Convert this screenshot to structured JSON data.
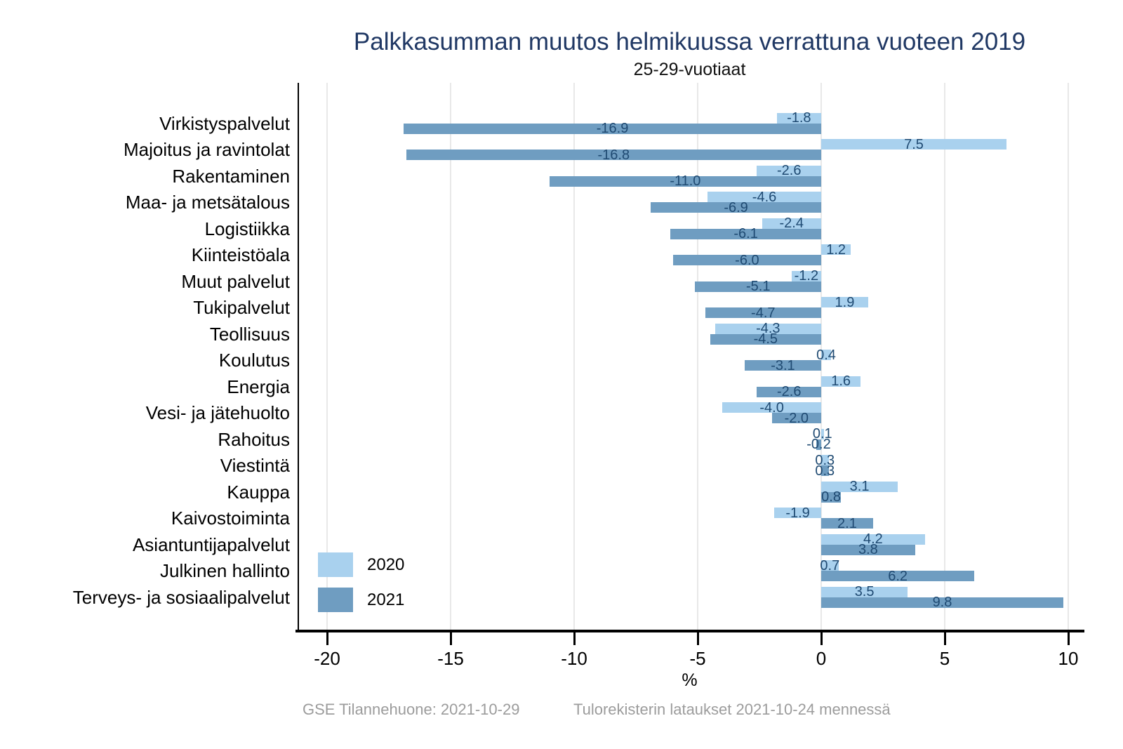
{
  "title": "Palkkasumman muutos helmikuussa verrattuna vuoteen 2019",
  "subtitle": "25-29-vuotiaat",
  "footer": {
    "left": "GSE Tilannehuone: 2021-10-29",
    "right": "Tulorekisterin lataukset 2021-10-24 mennessä"
  },
  "colors": {
    "series_2020": "#A9D1EE",
    "series_2021": "#6F9DC1",
    "title_text": "#203864",
    "value_label": "#1F4A72",
    "grid": "#E8E8E8",
    "axis": "#000000",
    "footer_text": "#9C9C9C"
  },
  "chart_data": {
    "type": "bar",
    "orientation": "horizontal",
    "title": "Palkkasumman muutos helmikuussa verrattuna vuoteen 2019",
    "subtitle": "25-29-vuotiaat",
    "xlabel": "%",
    "xlim": [
      -21.2,
      10.5
    ],
    "x_ticks": [
      -20,
      -15,
      -10,
      -5,
      0,
      5,
      10
    ],
    "grid": true,
    "value_labels": "one_decimal_centered_on_bar",
    "legend": {
      "position": "inside-bottom-left",
      "entries": [
        {
          "label": "2020",
          "color": "#A9D1EE"
        },
        {
          "label": "2021",
          "color": "#6F9DC1"
        }
      ]
    },
    "categories": [
      "Virkistyspalvelut",
      "Majoitus ja ravintolat",
      "Rakentaminen",
      "Maa- ja metsätalous",
      "Logistiikka",
      "Kiinteistöala",
      "Muut palvelut",
      "Tukipalvelut",
      "Teollisuus",
      "Koulutus",
      "Energia",
      "Vesi- ja jätehuolto",
      "Rahoitus",
      "Viestintä",
      "Kauppa",
      "Kaivostoiminta",
      "Asiantuntijapalvelut",
      "Julkinen hallinto",
      "Terveys- ja sosiaalipalvelut"
    ],
    "series": [
      {
        "name": "2020",
        "color": "#A9D1EE",
        "values": [
          -1.8,
          7.5,
          -2.6,
          -4.6,
          -2.4,
          1.2,
          -1.2,
          1.9,
          -4.3,
          0.4,
          1.6,
          -4.0,
          0.1,
          0.3,
          3.1,
          -1.9,
          4.2,
          0.7,
          3.5
        ]
      },
      {
        "name": "2021",
        "color": "#6F9DC1",
        "values": [
          -16.9,
          -16.8,
          -11.0,
          -6.9,
          -6.1,
          -6.0,
          -5.1,
          -4.7,
          -4.5,
          -3.1,
          -2.6,
          -2.0,
          -0.2,
          0.3,
          0.8,
          2.1,
          3.8,
          6.2,
          9.8
        ]
      }
    ]
  }
}
